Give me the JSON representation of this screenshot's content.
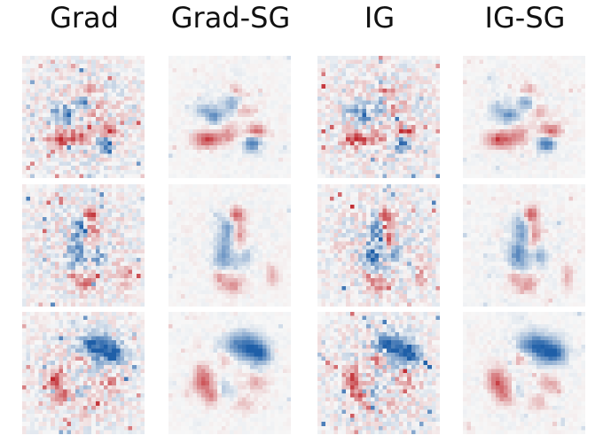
{
  "headers": [
    "Grad",
    "Grad-SG",
    "IG",
    "IG-SG"
  ],
  "colormap": {
    "negative": "#1f5fa8",
    "neutral": "#f7f7f7",
    "positive": "#c0272d"
  },
  "grid": {
    "rows": 3,
    "cols": 4,
    "cells_per_side": 30
  }
}
